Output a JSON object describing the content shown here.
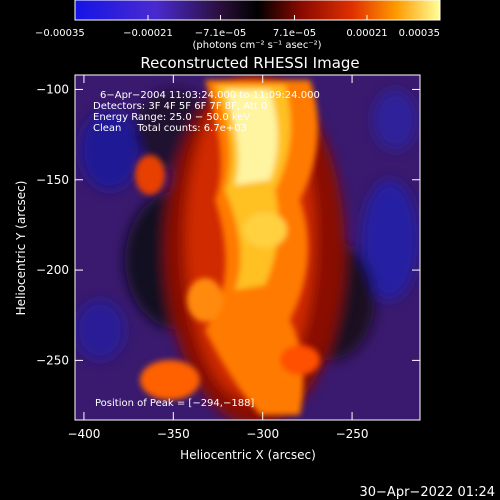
{
  "chart_data": {
    "type": "heatmap",
    "title": "Reconstructed RHESSI Image",
    "xlabel": "Heliocentric X (arcsec)",
    "ylabel": "Heliocentric Y (arcsec)",
    "xlim": [
      -405,
      -212
    ],
    "ylim": [
      -283,
      -92
    ],
    "xticks": [
      {
        "value": -400,
        "label": "−400"
      },
      {
        "value": -350,
        "label": "−350"
      },
      {
        "value": -300,
        "label": "−300"
      },
      {
        "value": -250,
        "label": "−250"
      }
    ],
    "yticks": [
      {
        "value": -100,
        "label": "−100"
      },
      {
        "value": -150,
        "label": "−150"
      },
      {
        "value": -200,
        "label": "−200"
      },
      {
        "value": -250,
        "label": "−250"
      }
    ],
    "colorbar": {
      "range": [
        -0.00035,
        0.00035
      ],
      "ticks": [
        {
          "value": -0.00035,
          "label": "−0.00035"
        },
        {
          "value": -0.00021,
          "label": "−0.00021"
        },
        {
          "value": -7.1e-05,
          "label": "−7.1e−05"
        },
        {
          "value": 7.1e-05,
          "label": "7.1e−05"
        },
        {
          "value": 0.00021,
          "label": "0.00021"
        },
        {
          "value": 0.00035,
          "label": "0.00035"
        }
      ],
      "unit_label": "(photons cm⁻² s⁻¹ asec⁻²)"
    },
    "peak_position": [
      -294,
      -188
    ],
    "annotations": [
      "6−Apr−2004 11:03:24.000 to 11:09:24.000",
      "Detectors: 3F 4F 5F 6F 7F 8F, Att 0",
      "Energy Range: 25.0 − 50.0 keV",
      "Clean     Total counts: 6.7e+03",
      "Position of Peak = [−294,−188]"
    ],
    "colors": {
      "background": "#000000",
      "low": "#1e1ee0",
      "zero": "#000000",
      "mid": "#cc1a00",
      "high": "#ffff99"
    }
  },
  "footer": {
    "timestamp": "30−Apr−2022 01:24"
  }
}
